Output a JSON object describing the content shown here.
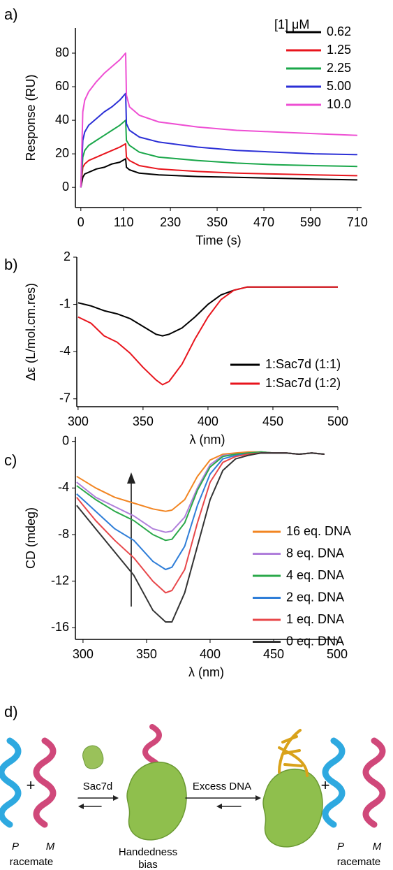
{
  "panel_labels": [
    "a)",
    "b)",
    "c)",
    "d)"
  ],
  "chart_data": [
    {
      "type": "line",
      "x_label": "Time (s)",
      "y_label": "Response (RU)",
      "legend_title": "[1] μM",
      "x": [
        0,
        5,
        10,
        20,
        40,
        60,
        80,
        100,
        115,
        117,
        125,
        150,
        200,
        300,
        400,
        500,
        600,
        710
      ],
      "series": [
        {
          "name": "0.62",
          "color": "#000000",
          "values": [
            0,
            6,
            8,
            9,
            11,
            12,
            14,
            15,
            17,
            12,
            10.5,
            8.5,
            7.5,
            6.5,
            6,
            5.5,
            5,
            4.5
          ]
        },
        {
          "name": "1.25",
          "color": "#e8141c",
          "values": [
            0,
            12,
            14,
            16,
            18,
            20,
            22,
            24,
            26,
            18,
            16,
            13,
            11,
            9.5,
            8.5,
            8,
            7.5,
            7
          ]
        },
        {
          "name": "2.25",
          "color": "#1aa74a",
          "values": [
            0,
            18,
            22,
            25,
            28,
            31,
            34,
            37,
            40,
            28,
            25,
            21,
            18,
            16,
            14.5,
            13.5,
            13,
            12.5
          ]
        },
        {
          "name": "5.00",
          "color": "#2b2fd6",
          "values": [
            0,
            28,
            33,
            37,
            41,
            45,
            48,
            52,
            56,
            38,
            34,
            30,
            27,
            24,
            22,
            21,
            20,
            19.5
          ]
        },
        {
          "name": "10.0",
          "color": "#ee4fd3",
          "values": [
            0,
            45,
            52,
            57,
            63,
            68,
            72,
            76,
            80,
            55,
            48,
            43,
            39,
            36,
            34,
            33,
            32,
            31
          ]
        }
      ],
      "xlim": [
        -14,
        721
      ],
      "ylim": [
        -12,
        95
      ],
      "xticks": [
        0,
        110,
        230,
        350,
        470,
        590,
        710
      ],
      "yticks": [
        0,
        20,
        40,
        60,
        80
      ]
    },
    {
      "type": "line",
      "x_label": "λ (nm)",
      "y_label": "Δε (L/mol.cm.res)",
      "x": [
        300,
        310,
        320,
        330,
        340,
        350,
        360,
        365,
        370,
        380,
        390,
        400,
        410,
        420,
        430,
        440,
        460,
        480,
        500
      ],
      "series": [
        {
          "name": "1:Sac7d (1:1)",
          "color": "#000000",
          "values": [
            -0.9,
            -1.1,
            -1.4,
            -1.6,
            -1.9,
            -2.4,
            -2.9,
            -3.0,
            -2.9,
            -2.5,
            -1.8,
            -1.0,
            -0.4,
            -0.1,
            0.1,
            0.1,
            0.1,
            0.1,
            0.1
          ]
        },
        {
          "name": "1:Sac7d (1:2)",
          "color": "#e8141c",
          "values": [
            -1.8,
            -2.2,
            -3.0,
            -3.4,
            -4.1,
            -5.0,
            -5.8,
            -6.1,
            -5.9,
            -4.8,
            -3.2,
            -1.8,
            -0.7,
            -0.1,
            0.1,
            0.1,
            0.1,
            0.1,
            0.1
          ]
        }
      ],
      "xlim": [
        299,
        500
      ],
      "ylim": [
        -7.5,
        2
      ],
      "xticks": [
        300,
        350,
        400,
        450,
        500
      ],
      "yticks": [
        2,
        -1,
        -4,
        -7
      ]
    },
    {
      "type": "line",
      "x_label": "λ (nm)",
      "y_label": "CD (mdeg)",
      "x": [
        295,
        310,
        325,
        340,
        355,
        365,
        370,
        380,
        390,
        400,
        410,
        420,
        430,
        440,
        450,
        460,
        470,
        480,
        490
      ],
      "series": [
        {
          "name": "16 eq. DNA",
          "color": "#f28522",
          "values": [
            -3,
            -4,
            -4.8,
            -5.3,
            -5.8,
            -6,
            -5.9,
            -5,
            -3,
            -1.6,
            -1.1,
            -1,
            -0.9,
            -0.9,
            -1,
            -1,
            -1.1,
            -1,
            -1.1
          ]
        },
        {
          "name": "8 eq. DNA",
          "color": "#b07fdb",
          "values": [
            -3.5,
            -4.8,
            -5.6,
            -6.4,
            -7.5,
            -7.8,
            -7.7,
            -6.5,
            -4,
            -2,
            -1.2,
            -1.1,
            -1,
            -0.9,
            -1,
            -1,
            -1.1,
            -1,
            -1.1
          ]
        },
        {
          "name": "4 eq. DNA",
          "color": "#2aa84a",
          "values": [
            -3.8,
            -5,
            -6,
            -6.8,
            -8,
            -8.5,
            -8.4,
            -7,
            -4.2,
            -2.2,
            -1.3,
            -1.1,
            -1,
            -0.9,
            -1,
            -1,
            -1.1,
            -1,
            -1.1
          ]
        },
        {
          "name": "2 eq. DNA",
          "color": "#2f7ed8",
          "values": [
            -4.5,
            -6,
            -7.5,
            -8.5,
            -10.3,
            -11,
            -10.8,
            -9,
            -5.5,
            -2.8,
            -1.5,
            -1.2,
            -1.1,
            -1,
            -1,
            -1,
            -1.1,
            -1,
            -1.1
          ]
        },
        {
          "name": "1 eq. DNA",
          "color": "#e8474a",
          "values": [
            -4.8,
            -6.8,
            -8.5,
            -10,
            -12,
            -13,
            -12.8,
            -11,
            -7,
            -3.5,
            -1.8,
            -1.3,
            -1.1,
            -1,
            -1,
            -1,
            -1.1,
            -1,
            -1.1
          ]
        },
        {
          "name": "0 eq. DNA",
          "color": "#333333",
          "values": [
            -5.5,
            -7.5,
            -9.5,
            -11.5,
            -14.5,
            -15.5,
            -15.5,
            -13,
            -9,
            -5,
            -2.5,
            -1.5,
            -1.2,
            -1,
            -1,
            -1,
            -1.1,
            -1,
            -1.1
          ]
        }
      ],
      "xlim": [
        294,
        500
      ],
      "ylim": [
        -17,
        0.4
      ],
      "xticks": [
        300,
        350,
        400,
        450,
        500
      ],
      "yticks": [
        0,
        -4,
        -8,
        -12,
        -16
      ]
    }
  ],
  "diagram": {
    "plus_left": "+",
    "plus_right": "+",
    "step1": "Sac7d",
    "step2": "Excess DNA",
    "left_p": "P",
    "left_m": "M",
    "left_caption": "racemate",
    "middle_caption": [
      "Handedness",
      "bias"
    ],
    "right_p": "P",
    "right_m": "M",
    "right_caption": "racemate"
  }
}
